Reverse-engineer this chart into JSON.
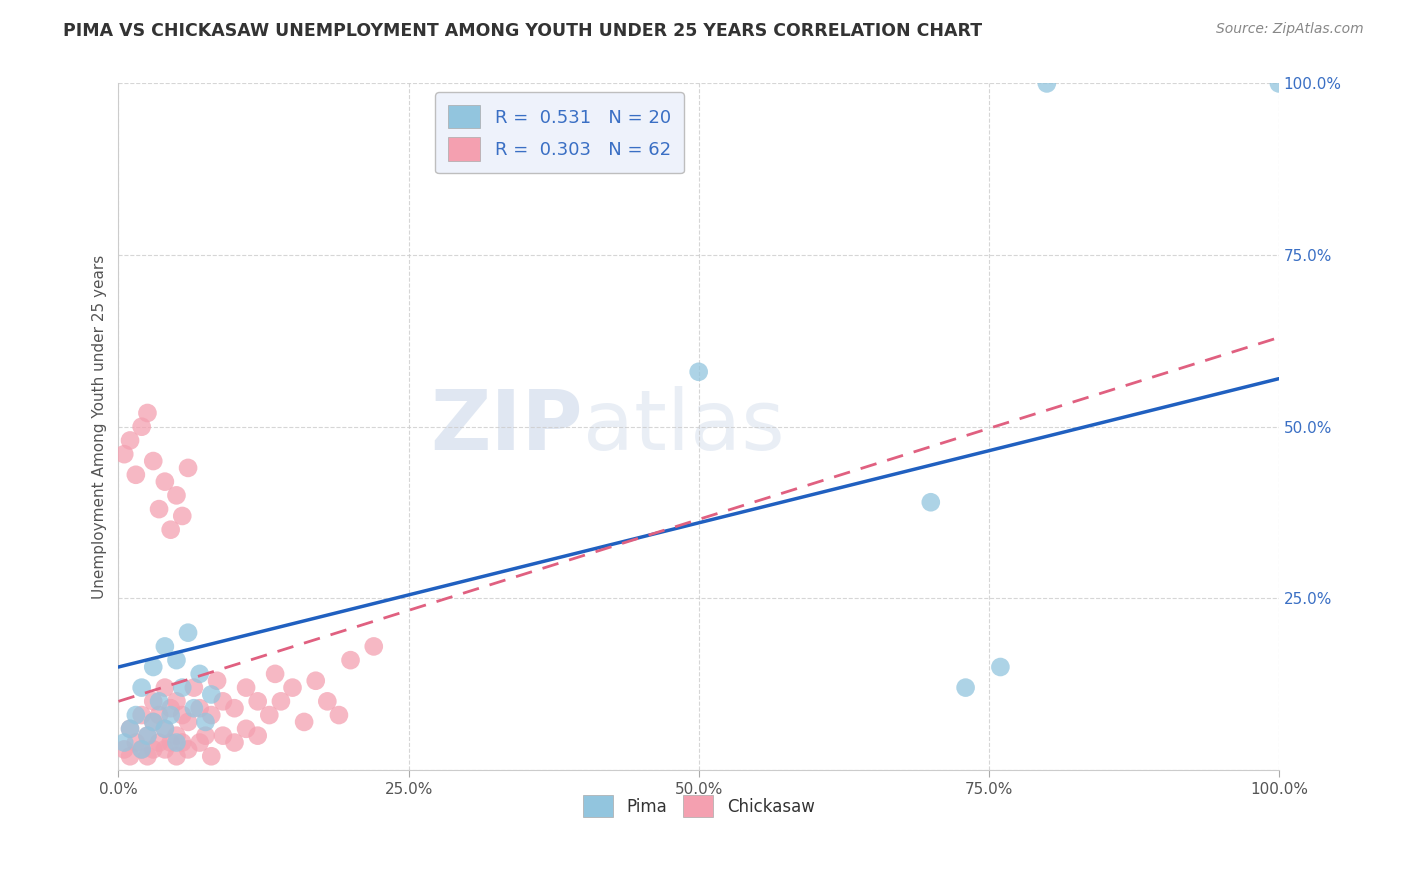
{
  "title": "PIMA VS CHICKASAW UNEMPLOYMENT AMONG YOUTH UNDER 25 YEARS CORRELATION CHART",
  "source": "Source: ZipAtlas.com",
  "ylabel": "Unemployment Among Youth under 25 years",
  "xlim": [
    0,
    1.0
  ],
  "ylim": [
    0,
    1.0
  ],
  "xticks": [
    0.0,
    0.25,
    0.5,
    0.75,
    1.0
  ],
  "yticks": [
    0.0,
    0.25,
    0.5,
    0.75,
    1.0
  ],
  "xticklabels": [
    "0.0%",
    "25.0%",
    "50.0%",
    "75.0%",
    "100.0%"
  ],
  "yticklabels": [
    "",
    "25.0%",
    "50.0%",
    "75.0%",
    "100.0%"
  ],
  "pima_R": 0.531,
  "pima_N": 20,
  "chickasaw_R": 0.303,
  "chickasaw_N": 62,
  "pima_color": "#92C5DE",
  "chickasaw_color": "#F4A0B0",
  "pima_line_color": "#2060C0",
  "chickasaw_line_color": "#E06080",
  "grid_color": "#CCCCCC",
  "background_color": "#FFFFFF",
  "watermark_zip": "ZIP",
  "watermark_atlas": "atlas",
  "legend_face_color": "#EEF2FB",
  "legend_text_color": "#3A6FC4",
  "pima_x": [
    0.005,
    0.01,
    0.015,
    0.02,
    0.02,
    0.025,
    0.03,
    0.03,
    0.035,
    0.04,
    0.04,
    0.045,
    0.05,
    0.05,
    0.055,
    0.06,
    0.065,
    0.07,
    0.075,
    0.08
  ],
  "pima_y": [
    0.04,
    0.06,
    0.08,
    0.03,
    0.12,
    0.05,
    0.07,
    0.15,
    0.1,
    0.06,
    0.18,
    0.08,
    0.04,
    0.16,
    0.12,
    0.2,
    0.09,
    0.14,
    0.07,
    0.11
  ],
  "pima_outlier_x": [
    0.5,
    0.7,
    0.73,
    0.76,
    0.8,
    1.0
  ],
  "pima_outlier_y": [
    0.58,
    0.39,
    0.12,
    0.15,
    1.0,
    1.0
  ],
  "chickasaw_x": [
    0.005,
    0.01,
    0.01,
    0.015,
    0.02,
    0.02,
    0.025,
    0.025,
    0.03,
    0.03,
    0.03,
    0.035,
    0.035,
    0.04,
    0.04,
    0.04,
    0.045,
    0.045,
    0.05,
    0.05,
    0.05,
    0.055,
    0.055,
    0.06,
    0.06,
    0.065,
    0.07,
    0.07,
    0.075,
    0.08,
    0.08,
    0.085,
    0.09,
    0.09,
    0.1,
    0.1,
    0.11,
    0.11,
    0.12,
    0.12,
    0.13,
    0.135,
    0.14,
    0.15,
    0.16,
    0.17,
    0.18,
    0.19,
    0.2,
    0.22,
    0.005,
    0.01,
    0.015,
    0.02,
    0.025,
    0.03,
    0.035,
    0.04,
    0.045,
    0.05,
    0.055,
    0.06
  ],
  "chickasaw_y": [
    0.03,
    0.02,
    0.06,
    0.04,
    0.03,
    0.08,
    0.02,
    0.05,
    0.03,
    0.07,
    0.1,
    0.04,
    0.08,
    0.03,
    0.06,
    0.12,
    0.04,
    0.09,
    0.02,
    0.05,
    0.1,
    0.04,
    0.08,
    0.03,
    0.07,
    0.12,
    0.04,
    0.09,
    0.05,
    0.02,
    0.08,
    0.13,
    0.05,
    0.1,
    0.04,
    0.09,
    0.06,
    0.12,
    0.05,
    0.1,
    0.08,
    0.14,
    0.1,
    0.12,
    0.07,
    0.13,
    0.1,
    0.08,
    0.16,
    0.18,
    0.46,
    0.48,
    0.43,
    0.5,
    0.52,
    0.45,
    0.38,
    0.42,
    0.35,
    0.4,
    0.37,
    0.44
  ],
  "pima_line_x0": 0.0,
  "pima_line_y0": 0.15,
  "pima_line_x1": 1.0,
  "pima_line_y1": 0.57,
  "chick_line_x0": 0.0,
  "chick_line_y0": 0.1,
  "chick_line_x1": 1.0,
  "chick_line_y1": 0.63
}
